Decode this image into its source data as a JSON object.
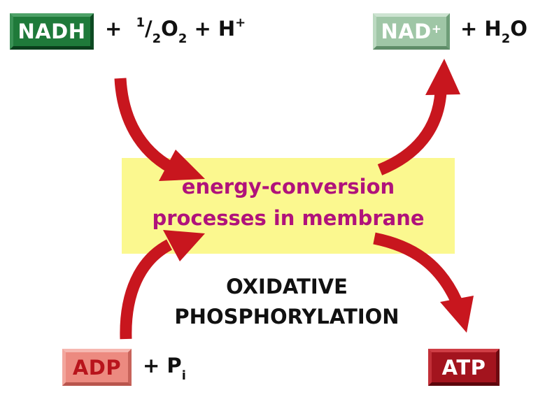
{
  "nadh": {
    "label": "NADH"
  },
  "reactant_top": {
    "plus1": "+",
    "half_num": "1",
    "slash": "/",
    "half_den": "2",
    "o2_base": "O",
    "o2_sub": "2",
    "plus2": "+",
    "h_base": "H",
    "h_sup": "+"
  },
  "nad": {
    "label": "NAD",
    "sup": "+"
  },
  "product_top": {
    "plus": "+",
    "h2o_h": "H",
    "h2o_sub": "2",
    "h2o_o": "O"
  },
  "membrane": {
    "line1": "energy-conversion",
    "line2": "processes in membrane"
  },
  "process": {
    "line1": "OXIDATIVE",
    "line2": "PHOSPHORYLATION"
  },
  "adp": {
    "label": "ADP"
  },
  "reactant_bottom": {
    "plus": "+",
    "p_base": "P",
    "p_sub": "i"
  },
  "atp": {
    "label": "ATP"
  },
  "colors": {
    "arrow": "#c8161e",
    "membrane_fill": "#fbf88f",
    "membrane_text": "#b0127b",
    "nadh_box": "#1f7a3a",
    "nad_box": "#9fc6a6",
    "adp_box": "#ec8a80",
    "atp_box": "#a3141e"
  }
}
